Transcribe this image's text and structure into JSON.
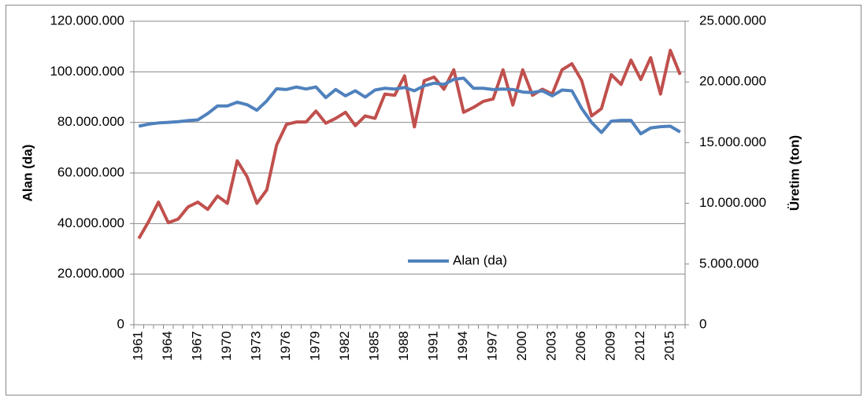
{
  "chart_data": {
    "type": "line",
    "categories": [
      "1961",
      null,
      null,
      "1964",
      null,
      null,
      "1967",
      null,
      null,
      "1970",
      null,
      null,
      "1973",
      null,
      null,
      "1976",
      null,
      null,
      "1979",
      null,
      null,
      "1982",
      null,
      null,
      "1985",
      null,
      null,
      "1988",
      null,
      null,
      "1991",
      null,
      null,
      "1994",
      null,
      null,
      "1997",
      null,
      null,
      "2000",
      null,
      null,
      "2003",
      null,
      null,
      "2006",
      null,
      null,
      "2009",
      null,
      null,
      "2012",
      null,
      null,
      "2015",
      null
    ],
    "y_label": "Alan (da)",
    "y2_label": "Üretim  (ton)",
    "ylim": [
      0,
      120000000
    ],
    "yticks": [
      0,
      {
        "value": 20000000,
        "label": "20.000.000"
      },
      {
        "value": 40000000,
        "label": "40.000.000"
      },
      {
        "value": 60000000,
        "label": "60.000.000"
      },
      {
        "value": 80000000,
        "label": "80.000.000"
      },
      {
        "value": 100000000,
        "label": "100.000.000"
      },
      {
        "value": 120000000,
        "label": "120.000.000"
      }
    ],
    "y2lim": [
      0,
      25000000
    ],
    "y2ticks": [
      0,
      {
        "value": 5000000,
        "label": "5.000.000"
      },
      {
        "value": 10000000,
        "label": "10.000.000"
      },
      {
        "value": 15000000,
        "label": "15.000.000"
      },
      {
        "value": 20000000,
        "label": "20.000.000"
      },
      {
        "value": 25000000,
        "label": "25.000.000"
      }
    ],
    "grid": true,
    "series": [
      {
        "name": "Alan (da)",
        "color": "#4f81bd",
        "values": [
          78500000,
          79300000,
          79800000,
          80000000,
          80300000,
          80700000,
          81000000,
          83500000,
          86500000,
          86500000,
          88000000,
          87000000,
          84800000,
          88500000,
          93300000,
          93000000,
          94000000,
          93200000,
          94000000,
          89800000,
          93000000,
          90500000,
          92500000,
          90000000,
          92800000,
          93500000,
          93200000,
          93800000,
          92500000,
          94500000,
          95500000,
          95000000,
          97000000,
          97500000,
          93500000,
          93500000,
          93000000,
          93200000,
          93000000,
          92000000,
          91800000,
          92500000,
          90500000,
          92800000,
          92500000,
          85500000,
          80000000,
          76000000,
          80500000,
          80800000,
          80800000,
          75500000,
          77800000,
          78300000,
          78500000,
          76200000
        ]
      },
      {
        "color": "#c0504d",
        "axis": "y2",
        "values": [
          7100000,
          8500000,
          10100000,
          8400000,
          8700000,
          9700000,
          10100000,
          9500000,
          10600000,
          10000000,
          13500000,
          12200000,
          10000000,
          11100000,
          14800000,
          16500000,
          16700000,
          16700000,
          17600000,
          16600000,
          17000000,
          17500000,
          16400000,
          17200000,
          17000000,
          19000000,
          18900000,
          20500000,
          16300000,
          20100000,
          20400000,
          19400000,
          21000000,
          17500000,
          17900000,
          18400000,
          18600000,
          21000000,
          18100000,
          21000000,
          18900000,
          19400000,
          19000000,
          21000000,
          21500000,
          20100000,
          17200000,
          17800000,
          20600000,
          19800000,
          21800000,
          20200000,
          22000000,
          19000000,
          22600000,
          20600000
        ]
      }
    ]
  }
}
